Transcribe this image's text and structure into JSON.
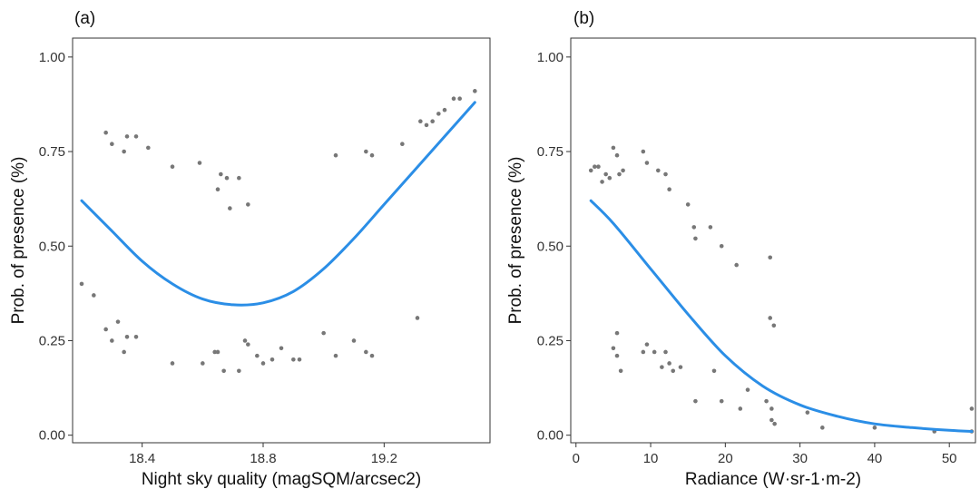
{
  "style": {
    "point_color": "#777777",
    "curve_color": "#2b8ee6"
  },
  "chart_data": [
    {
      "type": "scatter",
      "panel_label": "(a)",
      "xlabel": "Night sky quality (magSQM/arcsec2)",
      "ylabel": "Prob. of presence (%)",
      "xlim": [
        18.17,
        19.55
      ],
      "ylim": [
        -0.02,
        1.05
      ],
      "xticks": [
        {
          "value": 18.4,
          "label": "18.4"
        },
        {
          "value": 18.8,
          "label": "18.8"
        },
        {
          "value": 19.2,
          "label": "19.2"
        }
      ],
      "yticks": [
        {
          "value": 0.0,
          "label": "0.00"
        },
        {
          "value": 0.25,
          "label": "0.25"
        },
        {
          "value": 0.5,
          "label": "0.50"
        },
        {
          "value": 0.75,
          "label": "0.75"
        },
        {
          "value": 1.0,
          "label": "1.00"
        }
      ],
      "grid": false,
      "points": [
        [
          18.2,
          0.4
        ],
        [
          18.24,
          0.37
        ],
        [
          18.28,
          0.8
        ],
        [
          18.3,
          0.77
        ],
        [
          18.34,
          0.75
        ],
        [
          18.35,
          0.79
        ],
        [
          18.38,
          0.79
        ],
        [
          18.42,
          0.76
        ],
        [
          18.28,
          0.28
        ],
        [
          18.3,
          0.25
        ],
        [
          18.32,
          0.3
        ],
        [
          18.34,
          0.22
        ],
        [
          18.35,
          0.26
        ],
        [
          18.38,
          0.26
        ],
        [
          18.5,
          0.71
        ],
        [
          18.59,
          0.72
        ],
        [
          18.65,
          0.65
        ],
        [
          18.66,
          0.69
        ],
        [
          18.68,
          0.68
        ],
        [
          18.69,
          0.6
        ],
        [
          18.72,
          0.68
        ],
        [
          18.75,
          0.61
        ],
        [
          18.5,
          0.19
        ],
        [
          18.6,
          0.19
        ],
        [
          18.64,
          0.22
        ],
        [
          18.65,
          0.22
        ],
        [
          18.67,
          0.17
        ],
        [
          18.72,
          0.17
        ],
        [
          18.74,
          0.25
        ],
        [
          18.75,
          0.24
        ],
        [
          18.78,
          0.21
        ],
        [
          18.8,
          0.19
        ],
        [
          18.83,
          0.2
        ],
        [
          18.86,
          0.23
        ],
        [
          18.9,
          0.2
        ],
        [
          18.92,
          0.2
        ],
        [
          19.0,
          0.27
        ],
        [
          19.04,
          0.21
        ],
        [
          19.1,
          0.25
        ],
        [
          19.14,
          0.22
        ],
        [
          19.16,
          0.21
        ],
        [
          19.04,
          0.74
        ],
        [
          19.14,
          0.75
        ],
        [
          19.16,
          0.74
        ],
        [
          19.26,
          0.77
        ],
        [
          19.31,
          0.31
        ],
        [
          19.32,
          0.83
        ],
        [
          19.34,
          0.82
        ],
        [
          19.36,
          0.83
        ],
        [
          19.38,
          0.85
        ],
        [
          19.4,
          0.86
        ],
        [
          19.43,
          0.89
        ],
        [
          19.45,
          0.89
        ],
        [
          19.5,
          0.91
        ]
      ],
      "curve": [
        [
          18.2,
          0.62
        ],
        [
          18.3,
          0.54
        ],
        [
          18.4,
          0.46
        ],
        [
          18.5,
          0.4
        ],
        [
          18.6,
          0.36
        ],
        [
          18.7,
          0.345
        ],
        [
          18.8,
          0.35
        ],
        [
          18.9,
          0.38
        ],
        [
          19.0,
          0.44
        ],
        [
          19.1,
          0.52
        ],
        [
          19.2,
          0.61
        ],
        [
          19.3,
          0.7
        ],
        [
          19.4,
          0.79
        ],
        [
          19.5,
          0.88
        ]
      ]
    },
    {
      "type": "scatter",
      "panel_label": "(b)",
      "xlabel": "Radiance (W·sr-1·m-2)",
      "ylabel": "Prob. of presence (%)",
      "xlim": [
        -0.7,
        53.5
      ],
      "ylim": [
        -0.02,
        1.05
      ],
      "xticks": [
        {
          "value": 0,
          "label": "0"
        },
        {
          "value": 10,
          "label": "10"
        },
        {
          "value": 20,
          "label": "20"
        },
        {
          "value": 30,
          "label": "30"
        },
        {
          "value": 40,
          "label": "40"
        },
        {
          "value": 50,
          "label": "50"
        }
      ],
      "yticks": [
        {
          "value": 0.0,
          "label": "0.00"
        },
        {
          "value": 0.25,
          "label": "0.25"
        },
        {
          "value": 0.5,
          "label": "0.50"
        },
        {
          "value": 0.75,
          "label": "0.75"
        },
        {
          "value": 1.0,
          "label": "1.00"
        }
      ],
      "grid": false,
      "points": [
        [
          2,
          0.7
        ],
        [
          2.5,
          0.71
        ],
        [
          3,
          0.71
        ],
        [
          3.5,
          0.67
        ],
        [
          4,
          0.69
        ],
        [
          4.5,
          0.68
        ],
        [
          5,
          0.76
        ],
        [
          5.5,
          0.74
        ],
        [
          5.8,
          0.69
        ],
        [
          6.3,
          0.7
        ],
        [
          9,
          0.75
        ],
        [
          9.5,
          0.72
        ],
        [
          11,
          0.7
        ],
        [
          12,
          0.69
        ],
        [
          12.5,
          0.65
        ],
        [
          15,
          0.61
        ],
        [
          15.8,
          0.55
        ],
        [
          16,
          0.52
        ],
        [
          18,
          0.55
        ],
        [
          19.5,
          0.5
        ],
        [
          21.5,
          0.45
        ],
        [
          26,
          0.47
        ],
        [
          26,
          0.31
        ],
        [
          26.5,
          0.29
        ],
        [
          5,
          0.23
        ],
        [
          5.5,
          0.27
        ],
        [
          5.5,
          0.21
        ],
        [
          6,
          0.17
        ],
        [
          9,
          0.22
        ],
        [
          9.5,
          0.24
        ],
        [
          10.5,
          0.22
        ],
        [
          11.5,
          0.18
        ],
        [
          12,
          0.22
        ],
        [
          12.5,
          0.19
        ],
        [
          13,
          0.17
        ],
        [
          14,
          0.18
        ],
        [
          16,
          0.09
        ],
        [
          18.5,
          0.17
        ],
        [
          19.5,
          0.09
        ],
        [
          22,
          0.07
        ],
        [
          23,
          0.12
        ],
        [
          25.5,
          0.09
        ],
        [
          26.2,
          0.07
        ],
        [
          26.2,
          0.04
        ],
        [
          26.6,
          0.03
        ],
        [
          31,
          0.06
        ],
        [
          33,
          0.02
        ],
        [
          40,
          0.02
        ],
        [
          48,
          0.01
        ],
        [
          53,
          0.01
        ],
        [
          53,
          0.07
        ]
      ],
      "curve": [
        [
          2,
          0.62
        ],
        [
          5,
          0.56
        ],
        [
          10,
          0.44
        ],
        [
          15,
          0.32
        ],
        [
          20,
          0.21
        ],
        [
          25,
          0.13
        ],
        [
          30,
          0.08
        ],
        [
          35,
          0.05
        ],
        [
          40,
          0.03
        ],
        [
          45,
          0.02
        ],
        [
          50,
          0.013
        ],
        [
          53,
          0.01
        ]
      ]
    }
  ]
}
